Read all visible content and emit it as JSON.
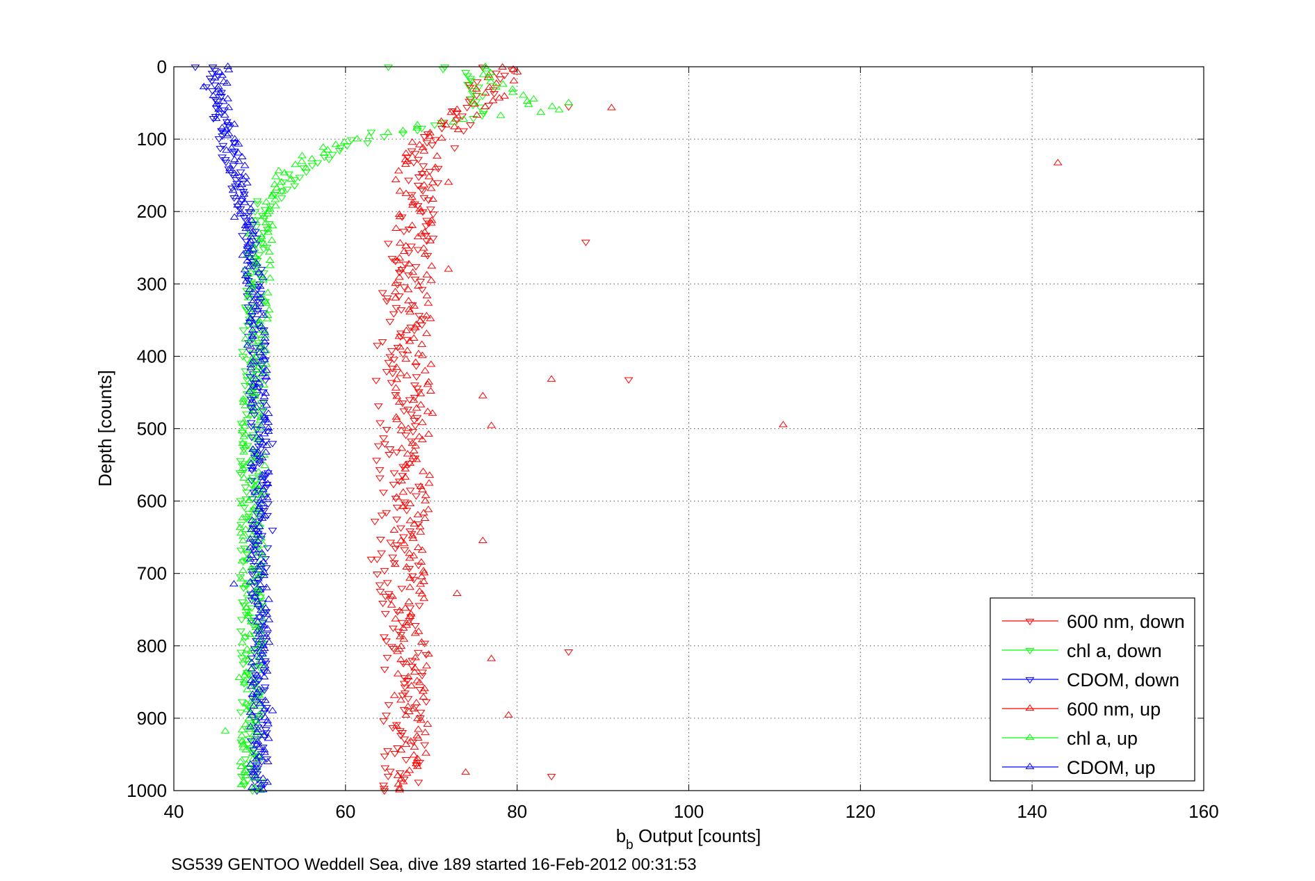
{
  "chart_data": {
    "type": "scatter",
    "xlabel_main": "b",
    "xlabel_sub": "b",
    "xlabel_rest": " Output [counts]",
    "ylabel": "Depth [counts]",
    "caption": "SG539 GENTOO Weddell Sea, dive 189 started 16-Feb-2012 00:31:53",
    "xlim": [
      40,
      160
    ],
    "ylim": [
      0,
      1000
    ],
    "y_reversed": true,
    "grid": true,
    "grid_style": "dotted",
    "legend_position": "bottom-right",
    "x_ticks": [
      "40",
      "60",
      "80",
      "100",
      "120",
      "140",
      "160"
    ],
    "y_ticks": [
      "0",
      "100",
      "200",
      "300",
      "400",
      "500",
      "600",
      "700",
      "800",
      "900",
      "1000"
    ],
    "series": [
      {
        "name": "600 nm, down",
        "color": "#ff0000",
        "marker": "triangle-down",
        "depth_range": [
          0,
          1000
        ],
        "profile": [
          [
            0,
            77
          ],
          [
            50,
            75
          ],
          [
            100,
            71
          ],
          [
            150,
            68.5
          ],
          [
            200,
            68
          ],
          [
            300,
            67
          ],
          [
            400,
            66
          ],
          [
            500,
            66
          ],
          [
            600,
            66
          ],
          [
            700,
            66
          ],
          [
            800,
            67
          ],
          [
            900,
            67
          ],
          [
            1000,
            67
          ]
        ],
        "spread": 2.6,
        "outliers": [
          [
            86,
            55
          ],
          [
            88,
            242
          ],
          [
            93,
            432
          ],
          [
            86,
            808
          ],
          [
            84,
            980
          ],
          [
            63,
            680
          ]
        ]
      },
      {
        "name": "chl a, down",
        "color": "#00ff00",
        "marker": "triangle-down",
        "depth_range": [
          0,
          1000
        ],
        "profile": [
          [
            0,
            72
          ],
          [
            40,
            76
          ],
          [
            70,
            75
          ],
          [
            100,
            62
          ],
          [
            120,
            59
          ],
          [
            150,
            54
          ],
          [
            185,
            51
          ],
          [
            200,
            50
          ],
          [
            300,
            49.5
          ],
          [
            500,
            49
          ],
          [
            700,
            49
          ],
          [
            1000,
            49
          ]
        ],
        "spread": 1.3,
        "outliers": [
          [
            65,
            0
          ],
          [
            63,
            90
          ]
        ]
      },
      {
        "name": "CDOM, down",
        "color": "#0000ff",
        "marker": "triangle-down",
        "depth_range": [
          0,
          1000
        ],
        "profile": [
          [
            0,
            44.5
          ],
          [
            50,
            45
          ],
          [
            100,
            46
          ],
          [
            150,
            47
          ],
          [
            200,
            48.5
          ],
          [
            300,
            49.5
          ],
          [
            500,
            50
          ],
          [
            700,
            50
          ],
          [
            1000,
            50
          ]
        ],
        "spread": 1.0,
        "outliers": [
          [
            42.5,
            0
          ],
          [
            51.5,
            520
          ],
          [
            51.5,
            640
          ]
        ]
      },
      {
        "name": "600 nm, up",
        "color": "#ff0000",
        "marker": "triangle-up",
        "depth_range": [
          0,
          1000
        ],
        "profile": [
          [
            0,
            79
          ],
          [
            40,
            77
          ],
          [
            100,
            70
          ],
          [
            150,
            68
          ],
          [
            200,
            68
          ],
          [
            300,
            68
          ],
          [
            500,
            68
          ],
          [
            700,
            67.5
          ],
          [
            900,
            67.5
          ],
          [
            1000,
            68
          ]
        ],
        "spread": 2.2,
        "outliers": [
          [
            143,
            133
          ],
          [
            91,
            57
          ],
          [
            111,
            495
          ],
          [
            84,
            432
          ],
          [
            76,
            455
          ],
          [
            77,
            496
          ],
          [
            76,
            655
          ],
          [
            77,
            818
          ],
          [
            79,
            896
          ],
          [
            74,
            975
          ],
          [
            72,
            280
          ],
          [
            73,
            728
          ],
          [
            72,
            160
          ]
        ]
      },
      {
        "name": "chl a, up",
        "color": "#00ff00",
        "marker": "triangle-up",
        "depth_range": [
          0,
          1000
        ],
        "profile": [
          [
            0,
            76
          ],
          [
            40,
            80
          ],
          [
            60,
            84
          ],
          [
            80,
            70
          ],
          [
            100,
            60
          ],
          [
            130,
            55
          ],
          [
            160,
            52
          ],
          [
            190,
            50.5
          ],
          [
            250,
            50
          ],
          [
            400,
            49.5
          ],
          [
            700,
            49
          ],
          [
            1000,
            49
          ]
        ],
        "spread": 1.4,
        "outliers": [
          [
            86,
            50
          ],
          [
            46,
            918
          ]
        ]
      },
      {
        "name": "CDOM, up",
        "color": "#0000ff",
        "marker": "triangle-up",
        "depth_range": [
          0,
          1000
        ],
        "profile": [
          [
            0,
            45.5
          ],
          [
            60,
            45.5
          ],
          [
            100,
            46.5
          ],
          [
            150,
            47.5
          ],
          [
            200,
            48
          ],
          [
            300,
            49.5
          ],
          [
            500,
            50
          ],
          [
            700,
            50
          ],
          [
            1000,
            50
          ]
        ],
        "spread": 1.1,
        "outliers": [
          [
            43.5,
            28
          ],
          [
            47,
            715
          ],
          [
            51.5,
            890
          ]
        ]
      }
    ]
  }
}
